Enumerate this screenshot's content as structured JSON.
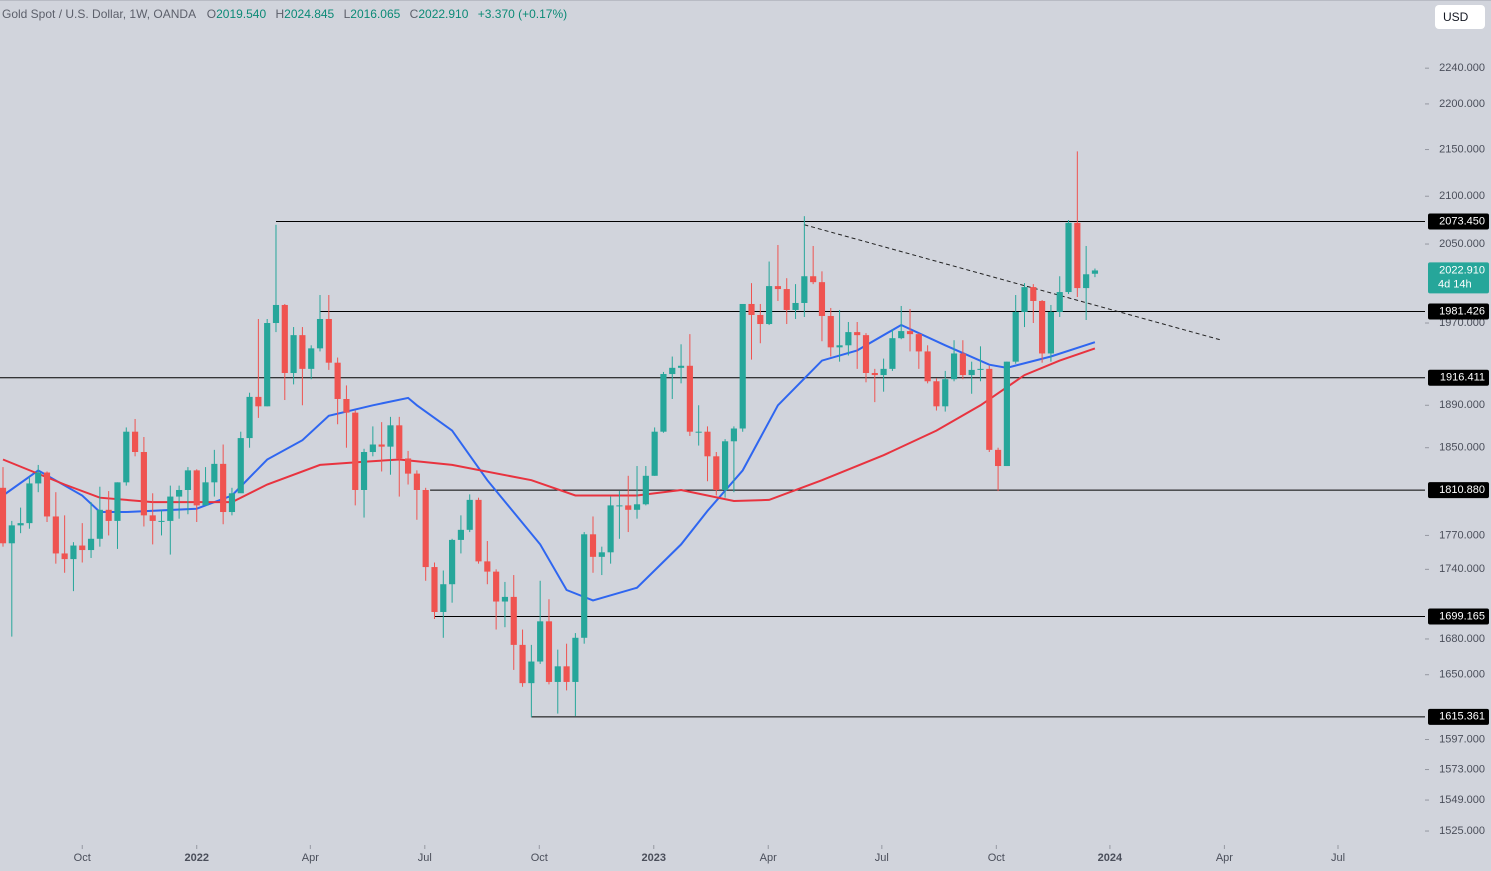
{
  "header": {
    "title": "Gold Spot / U.S. Dollar, 1W, OANDA",
    "fields": [
      {
        "key": "O",
        "text": "2019.540"
      },
      {
        "key": "H",
        "text": "2024.845"
      },
      {
        "key": "L",
        "text": "2016.065"
      },
      {
        "key": "C",
        "text": "2022.910"
      }
    ],
    "change": "+3.370 (+0.17%)",
    "currency": "USD"
  },
  "chart_data": {
    "type": "candlestick",
    "log_scale": true,
    "up_color": "#26a69a",
    "down_color": "#ef5350",
    "xlim": [
      -0.34,
      161.48
    ],
    "ylim": [
      1514.3,
      2318.3
    ],
    "xticks": [
      {
        "value": 9,
        "label": "Oct"
      },
      {
        "value": 22,
        "label": "2022"
      },
      {
        "value": 34.9,
        "label": "Apr"
      },
      {
        "value": 47.9,
        "label": "Jul"
      },
      {
        "value": 60.9,
        "label": "Oct"
      },
      {
        "value": 73.9,
        "label": "2023"
      },
      {
        "value": 86.9,
        "label": "Apr"
      },
      {
        "value": 99.8,
        "label": "Jul"
      },
      {
        "value": 112.8,
        "label": "Oct"
      },
      {
        "value": 125.7,
        "label": "2024"
      },
      {
        "value": 138.7,
        "label": "Apr"
      },
      {
        "value": 151.6,
        "label": "Jul"
      }
    ],
    "yticks": [
      {
        "value": 1525,
        "label": "1525.000"
      },
      {
        "value": 1549,
        "label": "1549.000"
      },
      {
        "value": 1573,
        "label": "1573.000"
      },
      {
        "value": 1597,
        "label": "1597.000"
      },
      {
        "value": 1650,
        "label": "1650.000"
      },
      {
        "value": 1680,
        "label": "1680.000"
      },
      {
        "value": 1740,
        "label": "1740.000"
      },
      {
        "value": 1770,
        "label": "1770.000"
      },
      {
        "value": 1850,
        "label": "1850.000"
      },
      {
        "value": 1890,
        "label": "1890.000"
      },
      {
        "value": 1970,
        "label": "1970.000"
      },
      {
        "value": 2050,
        "label": "2050.000"
      },
      {
        "value": 2100,
        "label": "2100.000"
      },
      {
        "value": 2150,
        "label": "2150.000"
      },
      {
        "value": 2200,
        "label": "2200.000"
      },
      {
        "value": 2240,
        "label": "2240.000"
      }
    ],
    "open": [
      1813,
      1763,
      1779,
      1781,
      1817,
      1827,
      1787,
      1754,
      1749,
      1761,
      1757,
      1767,
      1793,
      1783,
      1818,
      1865,
      1846,
      1788,
      1783,
      1783,
      1805,
      1811,
      1829,
      1797,
      1818,
      1835,
      1791,
      1808,
      1859,
      1898,
      1889,
      1970,
      1988,
      1921,
      1958,
      1925,
      1945,
      1974,
      1931,
      1896,
      1883,
      1811,
      1846,
      1853,
      1851,
      1871,
      1840,
      1826,
      1811,
      1742,
      1703,
      1727,
      1766,
      1775,
      1802,
      1747,
      1738,
      1712,
      1716,
      1675,
      1643,
      1661,
      1695,
      1644,
      1657,
      1644,
      1681,
      1771,
      1751,
      1755,
      1797,
      1797,
      1793,
      1798,
      1824,
      1865,
      1920,
      1926,
      1928,
      1865,
      1865,
      1842,
      1811,
      1856,
      1868,
      1989,
      1978,
      1969,
      2007,
      2004,
      1983,
      1990,
      2017,
      2011,
      1977,
      1946,
      1948,
      1961,
      1958,
      1921,
      1919,
      1925,
      1955,
      1962,
      1959,
      1942,
      1913,
      1889,
      1915,
      1940,
      1919,
      1924,
      1925,
      1848,
      1833,
      1932,
      1981,
      2006,
      1992,
      1940,
      1981,
      2001,
      2072,
      2005,
      2019.54
    ],
    "high": [
      1832,
      1783,
      1795,
      1823,
      1834,
      1828,
      1809,
      1788,
      1764,
      1781,
      1800,
      1814,
      1810,
      1818,
      1869,
      1877,
      1860,
      1808,
      1793,
      1815,
      1815,
      1832,
      1830,
      1832,
      1848,
      1853,
      1813,
      1865,
      1902,
      1974,
      1974,
      2070,
      1989,
      1966,
      1966,
      1948,
      1998,
      1998,
      1936,
      1909,
      1885,
      1849,
      1870,
      1874,
      1879,
      1879,
      1847,
      1829,
      1813,
      1746,
      1739,
      1767,
      1788,
      1807,
      1804,
      1765,
      1740,
      1729,
      1735,
      1688,
      1675,
      1730,
      1714,
      1671,
      1676,
      1685,
      1773,
      1787,
      1760,
      1805,
      1810,
      1824,
      1833,
      1833,
      1869,
      1922,
      1937,
      1949,
      1959,
      1890,
      1870,
      1846,
      1858,
      1870,
      1989,
      2010,
      1989,
      2032,
      2049,
      2015,
      2009,
      2079,
      2048,
      2022,
      1985,
      1983,
      1971,
      1971,
      1960,
      1925,
      1935,
      1964,
      1987,
      1984,
      1960,
      1948,
      1916,
      1923,
      1953,
      1953,
      1932,
      1947,
      1928,
      1850,
      1932,
      1998,
      2010,
      2009,
      1993,
      1988,
      2017,
      2075,
      2148,
      2048,
      2024.845
    ],
    "low": [
      1760,
      1682,
      1772,
      1776,
      1809,
      1782,
      1745,
      1737,
      1721,
      1746,
      1750,
      1760,
      1770,
      1758,
      1815,
      1842,
      1778,
      1762,
      1770,
      1753,
      1785,
      1789,
      1782,
      1797,
      1805,
      1780,
      1788,
      1809,
      1850,
      1878,
      1889,
      1961,
      1895,
      1910,
      1890,
      1915,
      1942,
      1924,
      1872,
      1850,
      1797,
      1786,
      1842,
      1828,
      1825,
      1805,
      1816,
      1784,
      1730,
      1697,
      1681,
      1711,
      1754,
      1773,
      1745,
      1727,
      1688,
      1690,
      1654,
      1640,
      1615,
      1659,
      1642,
      1618,
      1637,
      1616,
      1676,
      1737,
      1735,
      1745,
      1767,
      1773,
      1785,
      1797,
      1824,
      1864,
      1896,
      1911,
      1861,
      1852,
      1819,
      1806,
      1804,
      1809,
      1865,
      1934,
      1950,
      1968,
      1992,
      1969,
      1974,
      1976,
      2009,
      1952,
      1937,
      1932,
      1938,
      1925,
      1912,
      1893,
      1903,
      1923,
      1954,
      1942,
      1925,
      1911,
      1885,
      1884,
      1913,
      1915,
      1901,
      1913,
      1846,
      1810,
      1833,
      1930,
      1966,
      1970,
      1931,
      1932,
      1976,
      1999,
      1996,
      1973,
      2016.065
    ],
    "close": [
      1763,
      1779,
      1781,
      1817,
      1827,
      1787,
      1754,
      1749,
      1761,
      1757,
      1767,
      1793,
      1783,
      1818,
      1865,
      1846,
      1788,
      1783,
      1783,
      1805,
      1811,
      1829,
      1797,
      1818,
      1835,
      1791,
      1808,
      1859,
      1898,
      1889,
      1970,
      1988,
      1921,
      1958,
      1925,
      1945,
      1974,
      1931,
      1896,
      1883,
      1811,
      1846,
      1853,
      1851,
      1871,
      1840,
      1826,
      1811,
      1742,
      1703,
      1727,
      1766,
      1775,
      1802,
      1747,
      1738,
      1712,
      1716,
      1675,
      1643,
      1661,
      1695,
      1644,
      1657,
      1644,
      1681,
      1771,
      1751,
      1755,
      1797,
      1797,
      1793,
      1798,
      1824,
      1865,
      1920,
      1926,
      1928,
      1865,
      1865,
      1842,
      1811,
      1856,
      1868,
      1989,
      1978,
      1969,
      2007,
      2004,
      1983,
      1990,
      2017,
      2011,
      1977,
      1946,
      1948,
      1961,
      1958,
      1921,
      1919,
      1925,
      1955,
      1962,
      1959,
      1942,
      1913,
      1889,
      1915,
      1940,
      1919,
      1924,
      1925,
      1848,
      1833,
      1932,
      1981,
      2006,
      1992,
      1940,
      1981,
      2001,
      2072,
      2005,
      2019,
      2022.91
    ],
    "lines": [
      {
        "color": "#2f66f0",
        "x": [
          0,
          4,
          9,
          11,
          14,
          22,
          26,
          30,
          34,
          37,
          42,
          46,
          47,
          51,
          55,
          61,
          64,
          67,
          72,
          77,
          80,
          84,
          88,
          93,
          97,
          102,
          107,
          112,
          114,
          119,
          124
        ],
        "values": [
          1806,
          1829,
          1806,
          1791,
          1791,
          1794,
          1806,
          1839,
          1857,
          1880,
          1890,
          1897,
          1890,
          1866,
          1820,
          1762,
          1722,
          1713,
          1724,
          1762,
          1792,
          1829,
          1890,
          1933,
          1943,
          1968,
          1948,
          1929,
          1926,
          1937,
          1951
        ]
      },
      {
        "color": "#e8333f",
        "x": [
          0,
          7,
          11,
          17,
          26,
          30,
          36,
          41,
          45,
          51,
          60,
          65,
          72,
          77,
          83,
          87,
          93,
          100,
          106,
          111,
          116,
          120,
          124
        ],
        "values": [
          1839,
          1816,
          1804,
          1800,
          1800,
          1816,
          1834,
          1837,
          1839,
          1834,
          1820,
          1806,
          1806,
          1811,
          1801,
          1802,
          1820,
          1843,
          1866,
          1890,
          1919,
          1933,
          1945
        ]
      }
    ],
    "levels": [
      {
        "value": 2073.45,
        "label": "2073.450",
        "from": 31
      },
      {
        "value": 1981.426,
        "label": "1981.426",
        "from": 36
      },
      {
        "value": 1916.411,
        "label": "1916.411",
        "from": -0.34
      },
      {
        "value": 1810.88,
        "label": "1810.880",
        "from": 48.5
      },
      {
        "value": 1699.165,
        "label": "1699.165",
        "from": 49
      },
      {
        "value": 1615.361,
        "label": "1615.361",
        "from": 60
      }
    ],
    "trendline": {
      "x": [
        91,
        138.4
      ],
      "values": [
        2070,
        1953
      ]
    },
    "last_price": {
      "value": 2022.91,
      "label": "2022.910",
      "countdown": "4d 14h"
    }
  }
}
